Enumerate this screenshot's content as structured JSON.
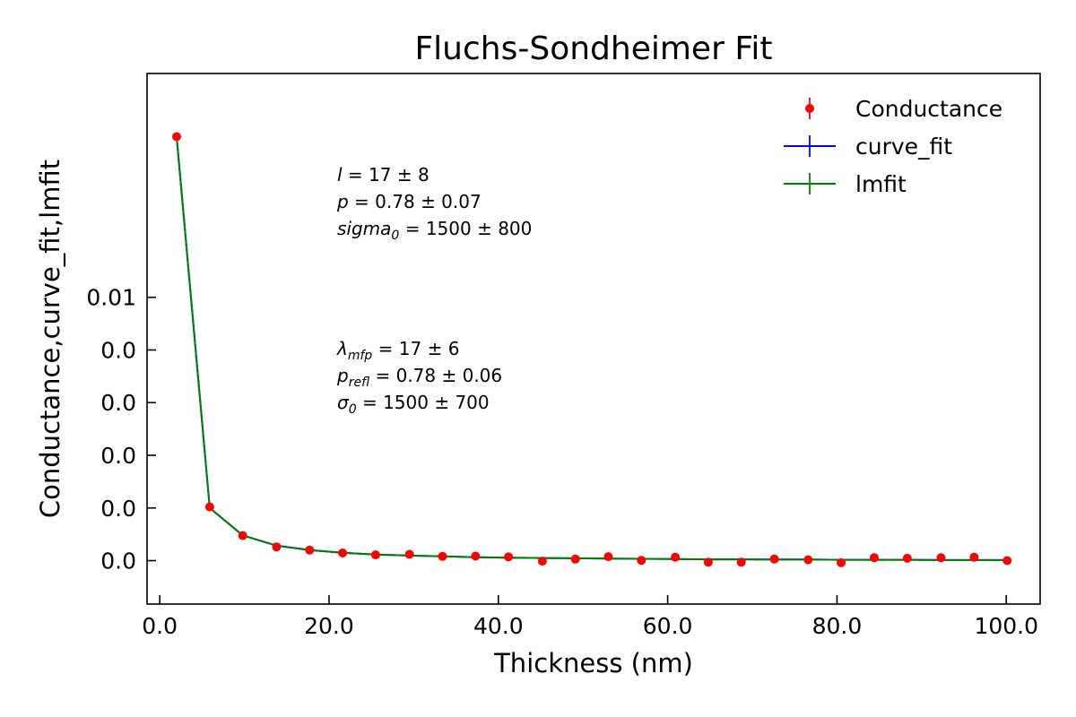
{
  "chart_data": {
    "type": "scatter",
    "title": "Fluchs-Sondheimer Fit",
    "xlabel": "Thickness (nm)",
    "ylabel": "Conductance,curve_fit,lmfit",
    "xlim": [
      -1.5,
      104.0
    ],
    "ylim": [
      -0.00165,
      0.0185
    ],
    "x_ticks": [
      0,
      20,
      40,
      60,
      80,
      100
    ],
    "x_tick_labels": [
      "0.0",
      "20.0",
      "40.0",
      "60.0",
      "80.0",
      "100.0"
    ],
    "y_ticks": [
      0.0,
      0.002,
      0.004,
      0.006,
      0.008,
      0.01
    ],
    "y_tick_labels": [
      "0.0",
      "0.0",
      "0.0",
      "0.0",
      "0.0",
      "0.01"
    ],
    "grid": false,
    "legend_position": "top-right",
    "series": [
      {
        "name": "Conductance",
        "kind": "points",
        "color": "#ff0000",
        "x": [
          2.0,
          5.9,
          9.8,
          13.8,
          17.7,
          21.6,
          25.5,
          29.5,
          33.4,
          37.3,
          41.2,
          45.2,
          49.1,
          53.0,
          56.9,
          60.9,
          64.8,
          68.7,
          72.6,
          76.6,
          80.5,
          84.4,
          88.3,
          92.3,
          96.2,
          100.1
        ],
        "y": [
          0.0161,
          0.00204,
          0.00095,
          0.00052,
          0.0004,
          0.00029,
          0.00022,
          0.00024,
          0.00016,
          0.00017,
          0.00014,
          -2e-05,
          6e-05,
          0.00015,
          1e-05,
          0.00013,
          -6e-05,
          -6e-05,
          6e-05,
          3e-05,
          -8e-05,
          0.00011,
          9e-05,
          0.00011,
          0.00013,
          0.0
        ]
      },
      {
        "name": "curve_fit",
        "kind": "line",
        "color": "#0000ff",
        "x": [
          2.0,
          5.9,
          9.8,
          13.8,
          17.7,
          21.6,
          25.5,
          29.5,
          33.4,
          37.3,
          41.2,
          45.2,
          49.1,
          53.0,
          56.9,
          60.9,
          64.8,
          68.7,
          72.6,
          76.6,
          80.5,
          84.4,
          88.3,
          92.3,
          96.2,
          100.1
        ],
        "y": [
          0.0161,
          0.002,
          0.00096,
          0.00057,
          0.0004,
          0.0003,
          0.00023,
          0.00019,
          0.00016,
          0.00013,
          0.00011,
          0.0001,
          9e-05,
          8e-05,
          7e-05,
          6e-05,
          5e-05,
          5e-05,
          4e-05,
          4e-05,
          3e-05,
          3e-05,
          3e-05,
          2e-05,
          2e-05,
          2e-05
        ]
      },
      {
        "name": "lmfit",
        "kind": "line",
        "color": "#008000",
        "x": [
          2.0,
          5.9,
          9.8,
          13.8,
          17.7,
          21.6,
          25.5,
          29.5,
          33.4,
          37.3,
          41.2,
          45.2,
          49.1,
          53.0,
          56.9,
          60.9,
          64.8,
          68.7,
          72.6,
          76.6,
          80.5,
          84.4,
          88.3,
          92.3,
          96.2,
          100.1
        ],
        "y": [
          0.0161,
          0.002,
          0.00096,
          0.00057,
          0.0004,
          0.0003,
          0.00023,
          0.00019,
          0.00016,
          0.00013,
          0.00011,
          0.0001,
          9e-05,
          8e-05,
          7e-05,
          6e-05,
          5e-05,
          5e-05,
          4e-05,
          4e-05,
          3e-05,
          3e-05,
          3e-05,
          2e-05,
          2e-05,
          2e-05
        ]
      }
    ],
    "annotations": [
      {
        "lines": [
          {
            "sym": "l",
            "sub": "",
            "val": " = 17 ± 8"
          },
          {
            "sym": "p",
            "sub": "",
            "val": " = 0.78 ± 0.07"
          },
          {
            "sym": "sigma",
            "sub": "0",
            "val": " = 1500 ± 800"
          }
        ]
      },
      {
        "lines": [
          {
            "sym": "λ",
            "sub": "mfp",
            "val": " = 17 ± 6"
          },
          {
            "sym": "p",
            "sub": "refl",
            "val": " = 0.78 ± 0.06"
          },
          {
            "sym": "σ",
            "sub": "0",
            "val": " = 1500 ± 700"
          }
        ]
      }
    ]
  }
}
